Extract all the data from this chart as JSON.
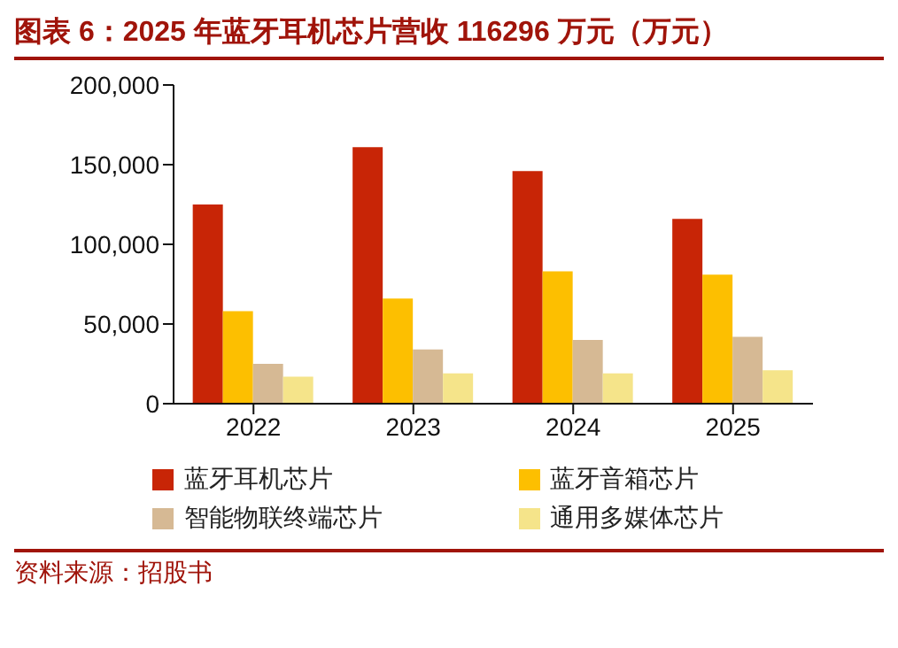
{
  "chart_data": {
    "type": "bar",
    "title": "图表 6：2025 年蓝牙耳机芯片营收 116296 万元（万元）",
    "categories": [
      "2022",
      "2023",
      "2024",
      "2025"
    ],
    "series": [
      {
        "name": "蓝牙耳机芯片",
        "color": "#c82506",
        "values": [
          125000,
          161000,
          146000,
          116000
        ]
      },
      {
        "name": "蓝牙音箱芯片",
        "color": "#fdbf00",
        "values": [
          58000,
          66000,
          83000,
          81000
        ]
      },
      {
        "name": "智能物联终端芯片",
        "color": "#d6b994",
        "values": [
          25000,
          34000,
          40000,
          42000
        ]
      },
      {
        "name": "通用多媒体芯片",
        "color": "#f5e48a",
        "values": [
          17000,
          19000,
          19000,
          21000
        ]
      }
    ],
    "ylim": [
      0,
      200000
    ],
    "yticks": [
      0,
      {
        "value": 50000,
        "label": "50,000"
      },
      {
        "value": 100000,
        "label": "100,000"
      },
      {
        "value": 150000,
        "label": "150,000"
      },
      {
        "value": 200000,
        "label": "200,000"
      }
    ],
    "grid": false,
    "legend": "bottom",
    "annotations": [
      "资料来源：招股书"
    ]
  }
}
